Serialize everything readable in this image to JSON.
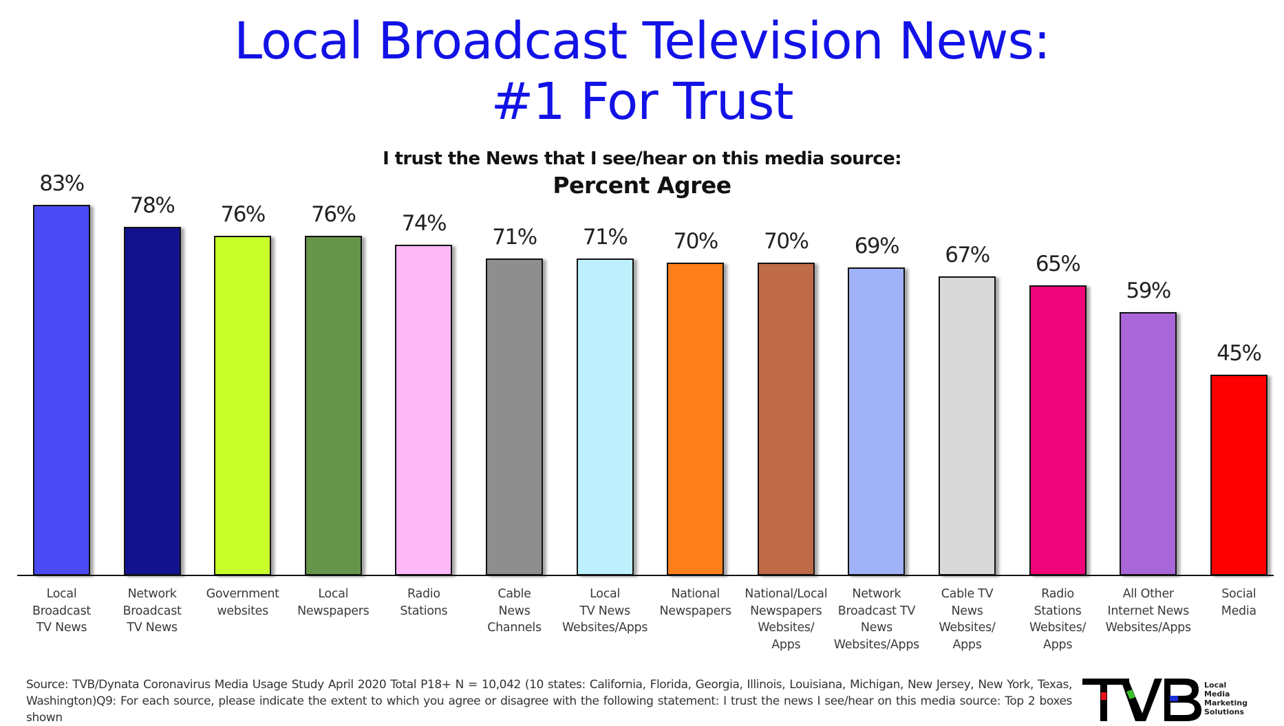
{
  "title": {
    "line1": "Local Broadcast Television News:",
    "line2": "#1 For Trust",
    "color": "#1212e6"
  },
  "subtitle": {
    "line1": "I trust the News that I see/hear on this media source:",
    "line2": "Percent Agree"
  },
  "chart_data": {
    "type": "bar",
    "title": "Local Broadcast Television News: #1 For Trust",
    "subtitle": "I trust the News that I see/hear on this media source: Percent Agree",
    "xlabel": "",
    "ylabel": "Percent Agree",
    "ylim": [
      0,
      85
    ],
    "grid": false,
    "legend": "none",
    "categories": [
      "Local Broadcast TV News",
      "Network Broadcast TV News",
      "Government websites",
      "Local Newspapers",
      "Radio Stations",
      "Cable News Channels",
      "Local TV News Websites/Apps",
      "National Newspapers",
      "National/Local Newspapers Websites/ Apps",
      "Network Broadcast TV News Websites/Apps",
      "Cable TV News Websites/ Apps",
      "Radio Stations Websites/ Apps",
      "All Other Internet News Websites/Apps",
      "Social Media"
    ],
    "values": [
      83,
      78,
      76,
      76,
      74,
      71,
      71,
      70,
      70,
      69,
      67,
      65,
      59,
      45
    ],
    "value_labels": [
      "83%",
      "78%",
      "76%",
      "76%",
      "74%",
      "71%",
      "71%",
      "70%",
      "70%",
      "69%",
      "67%",
      "65%",
      "59%",
      "45%"
    ],
    "colors": [
      "#4b4bf5",
      "#12128f",
      "#c8ff2a",
      "#65944a",
      "#ffb8f8",
      "#8e8e8e",
      "#bdeffc",
      "#ff7f1a",
      "#bf6a48",
      "#a0b3f8",
      "#d9d9d9",
      "#ef0579",
      "#a866d8",
      "#ff0000"
    ]
  },
  "bars": [
    {
      "value": 83,
      "label": "83%",
      "color": "#4b4bf5",
      "category_lines": [
        "Local",
        "Broadcast",
        "TV News"
      ]
    },
    {
      "value": 78,
      "label": "78%",
      "color": "#12128f",
      "category_lines": [
        "Network",
        "Broadcast",
        "TV News"
      ]
    },
    {
      "value": 76,
      "label": "76%",
      "color": "#c8ff2a",
      "category_lines": [
        "Government",
        "websites"
      ]
    },
    {
      "value": 76,
      "label": "76%",
      "color": "#65944a",
      "category_lines": [
        "Local",
        "Newspapers"
      ]
    },
    {
      "value": 74,
      "label": "74%",
      "color": "#ffb8f8",
      "category_lines": [
        "Radio",
        "Stations"
      ]
    },
    {
      "value": 71,
      "label": "71%",
      "color": "#8e8e8e",
      "category_lines": [
        "Cable",
        "News",
        "Channels"
      ]
    },
    {
      "value": 71,
      "label": "71%",
      "color": "#bdeffc",
      "category_lines": [
        "Local",
        "TV News",
        "Websites/Apps"
      ]
    },
    {
      "value": 70,
      "label": "70%",
      "color": "#ff7f1a",
      "category_lines": [
        "National",
        "Newspapers"
      ]
    },
    {
      "value": 70,
      "label": "70%",
      "color": "#bf6a48",
      "category_lines": [
        "National/Local",
        "Newspapers",
        "Websites/",
        "Apps"
      ]
    },
    {
      "value": 69,
      "label": "69%",
      "color": "#a0b3f8",
      "category_lines": [
        "Network",
        "Broadcast TV",
        "News",
        "Websites/Apps"
      ]
    },
    {
      "value": 67,
      "label": "67%",
      "color": "#d9d9d9",
      "category_lines": [
        "Cable TV",
        "News",
        "Websites/",
        "Apps"
      ]
    },
    {
      "value": 65,
      "label": "65%",
      "color": "#ef0579",
      "category_lines": [
        "Radio",
        "Stations",
        "Websites/",
        "Apps"
      ]
    },
    {
      "value": 59,
      "label": "59%",
      "color": "#a866d8",
      "category_lines": [
        "All Other",
        "Internet News",
        "Websites/Apps"
      ]
    },
    {
      "value": 45,
      "label": "45%",
      "color": "#ff0000",
      "category_lines": [
        "Social",
        "Media"
      ]
    }
  ],
  "footer": {
    "source": "Source: TVB/Dynata  Coronavirus Media Usage Study April 2020 Total P18+ N = 10,042 (10 states: California, Florida, Georgia, Illinois, Louisiana, Michigan, New Jersey, New York, Texas, Washington)Q9:  For each source, please indicate the extent  to which you agree or disagree with the following statement: I trust the news I see/hear on this media source: Top 2 boxes shown"
  },
  "logo": {
    "mark": "TVB",
    "tagline": [
      "Local",
      "Media",
      "Marketing",
      "Solutions"
    ],
    "accent_colors": [
      "#e8141c",
      "#39c12a",
      "#1a2fd6"
    ]
  }
}
